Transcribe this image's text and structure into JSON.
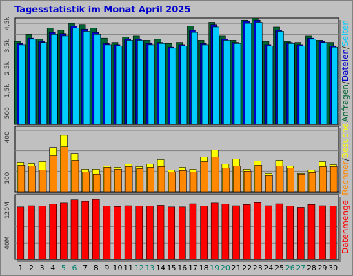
{
  "title": "Tagesstatistik im Monat April 2025",
  "chart_data": [
    {
      "type": "bar",
      "panel": "top",
      "ylim": [
        0,
        4750
      ],
      "yticks": [
        500,
        1500,
        2500,
        3500,
        4500
      ],
      "ytick_labels": [
        "500",
        "1,5k",
        "2,5k",
        "3,5k",
        "4,5k"
      ],
      "right_label": [
        {
          "text": "Anfragen",
          "color": "#006633"
        },
        {
          "text": "/",
          "color": "#333333"
        },
        {
          "text": "Dateien",
          "color": "#0000cc"
        },
        {
          "text": "/",
          "color": "#333333"
        },
        {
          "text": "Seiten",
          "color": "#00ccff"
        }
      ],
      "series": [
        {
          "name": "Anfragen",
          "color": "#006633",
          "values": [
            3700,
            4000,
            3800,
            4300,
            4200,
            4500,
            4450,
            4300,
            3850,
            3650,
            3900,
            3950,
            3750,
            3800,
            3600,
            3650,
            4400,
            3750,
            4550,
            3950,
            3750,
            4650,
            4750,
            3700,
            4350,
            3700,
            3650,
            3950,
            3750,
            3650
          ]
        },
        {
          "name": "Dateien",
          "color": "#0000cc",
          "values": [
            3600,
            3850,
            3700,
            4100,
            4050,
            4400,
            4250,
            4100,
            3600,
            3550,
            3800,
            3800,
            3600,
            3650,
            3450,
            3550,
            4200,
            3600,
            4450,
            3800,
            3650,
            4600,
            4650,
            3550,
            4200,
            3650,
            3550,
            3850,
            3700,
            3500
          ]
        },
        {
          "name": "Seiten",
          "color": "#00ccff",
          "values": [
            3550,
            3800,
            3650,
            4000,
            3950,
            4300,
            4150,
            4000,
            3550,
            3500,
            3750,
            3750,
            3550,
            3600,
            3400,
            3500,
            4100,
            3550,
            4350,
            3750,
            3600,
            4500,
            4550,
            3500,
            4150,
            3600,
            3500,
            3800,
            3650,
            3450
          ]
        }
      ]
    },
    {
      "type": "bar",
      "panel": "middle",
      "ylim": [
        0,
        480
      ],
      "yticks": [
        100,
        400
      ],
      "ytick_labels": [
        "100",
        "400"
      ],
      "right_label": [
        {
          "text": "Rechner",
          "color": "#ff8800"
        },
        {
          "text": "/",
          "color": "#333333"
        },
        {
          "text": "Besuche",
          "color": "#ffff00"
        }
      ],
      "series": [
        {
          "name": "Besuche",
          "color": "#ffff00",
          "values": [
            215,
            210,
            220,
            325,
            415,
            280,
            165,
            165,
            190,
            180,
            205,
            185,
            205,
            235,
            160,
            180,
            165,
            255,
            305,
            205,
            240,
            165,
            225,
            135,
            230,
            190,
            135,
            160,
            220,
            200
          ]
        },
        {
          "name": "Rechner",
          "color": "#ff8800",
          "values": [
            195,
            190,
            160,
            265,
            330,
            230,
            145,
            130,
            180,
            165,
            185,
            170,
            180,
            185,
            145,
            155,
            145,
            220,
            255,
            175,
            190,
            150,
            195,
            120,
            190,
            175,
            130,
            140,
            185,
            185
          ]
        }
      ]
    },
    {
      "type": "bar",
      "panel": "bottom",
      "ylim": [
        0,
        158
      ],
      "yticks": [
        40,
        120
      ],
      "ytick_labels": [
        "40M",
        "120M"
      ],
      "right_label": [
        {
          "text": "Datenmenge",
          "color": "#ff0000"
        }
      ],
      "series": [
        {
          "name": "Datenmenge",
          "color": "#ff0000",
          "values": [
            128,
            131,
            130,
            135,
            138,
            145,
            141,
            146,
            130,
            129,
            131,
            130,
            130,
            132,
            128,
            128,
            136,
            130,
            138,
            135,
            131,
            134,
            139,
            131,
            136,
            130,
            127,
            134,
            131,
            130
          ]
        }
      ]
    }
  ],
  "x_labels": [
    {
      "text": "1",
      "color": "#000000"
    },
    {
      "text": "2",
      "color": "#000000"
    },
    {
      "text": "3",
      "color": "#000000"
    },
    {
      "text": "4",
      "color": "#000000"
    },
    {
      "text": "5",
      "color": "#00806f"
    },
    {
      "text": "6",
      "color": "#00806f"
    },
    {
      "text": "7",
      "color": "#000000"
    },
    {
      "text": "8",
      "color": "#000000"
    },
    {
      "text": "9",
      "color": "#000000"
    },
    {
      "text": "10",
      "color": "#000000"
    },
    {
      "text": "11",
      "color": "#000000"
    },
    {
      "text": "12",
      "color": "#00806f"
    },
    {
      "text": "13",
      "color": "#00806f"
    },
    {
      "text": "14",
      "color": "#000000"
    },
    {
      "text": "15",
      "color": "#000000"
    },
    {
      "text": "16",
      "color": "#000000"
    },
    {
      "text": "17",
      "color": "#000000"
    },
    {
      "text": "18",
      "color": "#000000"
    },
    {
      "text": "19",
      "color": "#00806f"
    },
    {
      "text": "20",
      "color": "#00806f"
    },
    {
      "text": "21",
      "color": "#000000"
    },
    {
      "text": "22",
      "color": "#000000"
    },
    {
      "text": "23",
      "color": "#000000"
    },
    {
      "text": "24",
      "color": "#000000"
    },
    {
      "text": "25",
      "color": "#000000"
    },
    {
      "text": "26",
      "color": "#00806f"
    },
    {
      "text": "27",
      "color": "#00806f"
    },
    {
      "text": "28",
      "color": "#000000"
    },
    {
      "text": "29",
      "color": "#000000"
    },
    {
      "text": "30",
      "color": "#000000"
    }
  ]
}
